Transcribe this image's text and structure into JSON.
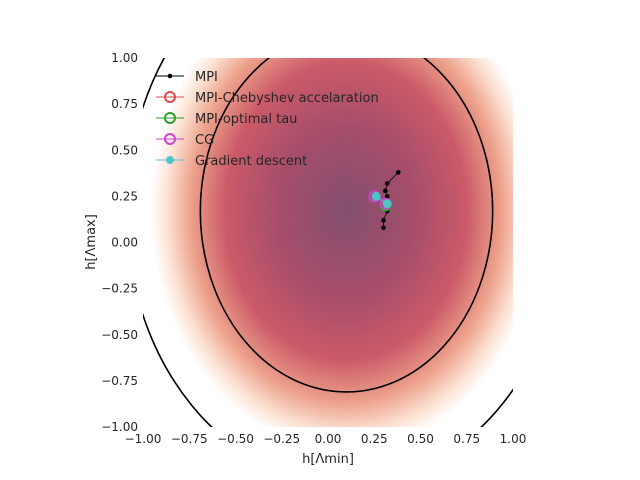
{
  "chart_data": {
    "type": "scatter",
    "title": "",
    "xlabel": "h[Λmin]",
    "ylabel": "h[Λmax]",
    "xlim": [
      -1.0,
      1.0
    ],
    "ylim": [
      -1.0,
      1.0
    ],
    "xticks": [
      "−1.00",
      "−0.75",
      "−0.50",
      "−0.25",
      "0.00",
      "0.25",
      "0.50",
      "0.75",
      "1.00"
    ],
    "yticks": [
      "−1.00",
      "−0.75",
      "−0.50",
      "−0.25",
      "0.00",
      "0.25",
      "0.50",
      "0.75",
      "1.00"
    ],
    "background": "heatmap of a quadratic objective centered near (0.10, 0.17) with elliptical level-set contours",
    "contours": [
      {
        "center": [
          0.1,
          0.17
        ],
        "rx": 0.79,
        "ry": 0.98
      },
      {
        "center": [
          0.1,
          0.17
        ],
        "rx": 1.19,
        "ry": 1.48
      }
    ],
    "legend_position": "top-left",
    "series": [
      {
        "name": "MPI",
        "color": "#000000",
        "marker": "dot",
        "points": [
          [
            0.38,
            0.38
          ],
          [
            0.32,
            0.32
          ],
          [
            0.31,
            0.28
          ],
          [
            0.32,
            0.25
          ],
          [
            0.31,
            0.22
          ],
          [
            0.32,
            0.17
          ],
          [
            0.3,
            0.12
          ],
          [
            0.3,
            0.08
          ]
        ]
      },
      {
        "name": "MPI-Chebyshev accelaration",
        "color": "#e24a4a",
        "marker": "ring",
        "points": [
          [
            0.31,
            0.21
          ]
        ]
      },
      {
        "name": "MPI-optimal tau",
        "color": "#2ca02c",
        "marker": "ring",
        "points": [
          [
            0.31,
            0.2
          ]
        ]
      },
      {
        "name": "CG",
        "color": "#cc44cc",
        "marker": "ring",
        "points": [
          [
            0.25,
            0.25
          ],
          [
            0.31,
            0.21
          ]
        ]
      },
      {
        "name": "Gradient descent",
        "color": "#4fc3c8",
        "marker": "dot",
        "points": [
          [
            0.26,
            0.25
          ],
          [
            0.32,
            0.21
          ]
        ]
      }
    ]
  }
}
